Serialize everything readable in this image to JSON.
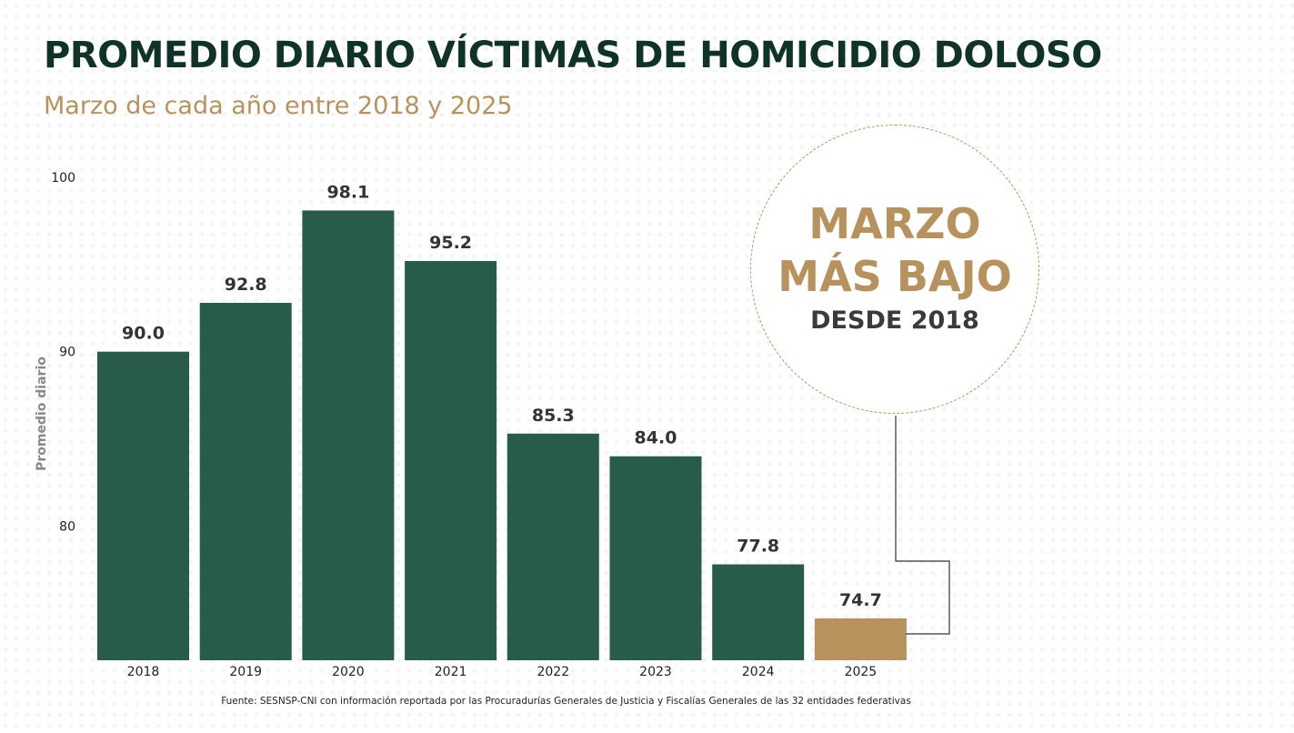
{
  "header": {
    "title": "PROMEDIO DIARIO VÍCTIMAS DE HOMICIDIO DOLOSO",
    "subtitle": "Marzo de cada año entre 2018 y 2025"
  },
  "callout": {
    "line1": "MARZO",
    "line2": "MÁS BAJO",
    "line3": "DESDE 2018"
  },
  "source": "Fuente: SESNSP-CNI con información reportada por las Procuradurías Generales de Justicia y Fiscalías Generales de las 32 entidades federativas",
  "colors": {
    "bar": "#275c4b",
    "highlight": "#b8925c",
    "title": "#0f3329"
  },
  "chart_data": {
    "type": "bar",
    "categories": [
      "2018",
      "2019",
      "2020",
      "2021",
      "2022",
      "2023",
      "2024",
      "2025"
    ],
    "values": [
      90.0,
      92.8,
      98.1,
      95.2,
      85.3,
      84.0,
      77.8,
      74.7
    ],
    "value_labels": [
      "90.0",
      "92.8",
      "98.1",
      "95.2",
      "85.3",
      "84.0",
      "77.8",
      "74.7"
    ],
    "highlight_category": "2025",
    "ylabel": "Promedio diario",
    "yticks": [
      80,
      90,
      100
    ],
    "ylim": [
      72.3,
      100
    ],
    "grid": false,
    "legend": "none"
  }
}
